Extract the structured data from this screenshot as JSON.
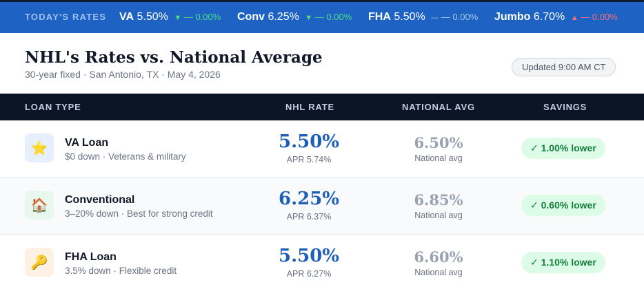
{
  "ticker": {
    "label": "TODAY'S RATES",
    "items": [
      {
        "name": "VA",
        "rate": "5.50%",
        "arrow": "▼",
        "change": "— 0.00%",
        "direction": "down"
      },
      {
        "name": "Conv",
        "rate": "6.25%",
        "arrow": "▼",
        "change": "— 0.00%",
        "direction": "down"
      },
      {
        "name": "FHA",
        "rate": "5.50%",
        "arrow": "—",
        "change": "— 0.00%",
        "direction": "flat"
      },
      {
        "name": "Jumbo",
        "rate": "6.70%",
        "arrow": "▲",
        "change": "— 0.00%",
        "direction": "up"
      }
    ]
  },
  "header": {
    "title": "NHL's Rates vs. National Average",
    "subtitle": "30-year fixed · San Antonio, TX · May 4, 2026",
    "updated": "Updated 9:00 AM CT"
  },
  "table": {
    "columns": [
      "LOAN TYPE",
      "NHL RATE",
      "NATIONAL AVG",
      "SAVINGS"
    ],
    "rows": [
      {
        "icon": "star-icon",
        "glyph": "⭐",
        "icon_bg": "#e6effc",
        "name": "VA Loan",
        "desc": "$0 down · Veterans & military",
        "rate": "5.50%",
        "apr": "APR 5.74%",
        "national": "6.50%",
        "national_label": "National avg",
        "savings": "✓ 1.00% lower"
      },
      {
        "icon": "house-icon",
        "glyph": "🏠",
        "icon_bg": "#e9f8ee",
        "name": "Conventional",
        "desc": "3–20% down · Best for strong credit",
        "rate": "6.25%",
        "apr": "APR 6.37%",
        "national": "6.85%",
        "national_label": "National avg",
        "savings": "✓ 0.60% lower"
      },
      {
        "icon": "key-icon",
        "glyph": "🔑",
        "icon_bg": "#fdf1e4",
        "name": "FHA Loan",
        "desc": "3.5% down · Flexible credit",
        "rate": "5.50%",
        "apr": "APR 6.27%",
        "national": "6.60%",
        "national_label": "National avg",
        "savings": "✓ 1.10% lower"
      }
    ]
  },
  "colors": {
    "ticker_bg": "#1e63c4",
    "header_bg": "#0c1526",
    "rate_blue": "#1e5fb8",
    "savings_green": "#15803d"
  }
}
